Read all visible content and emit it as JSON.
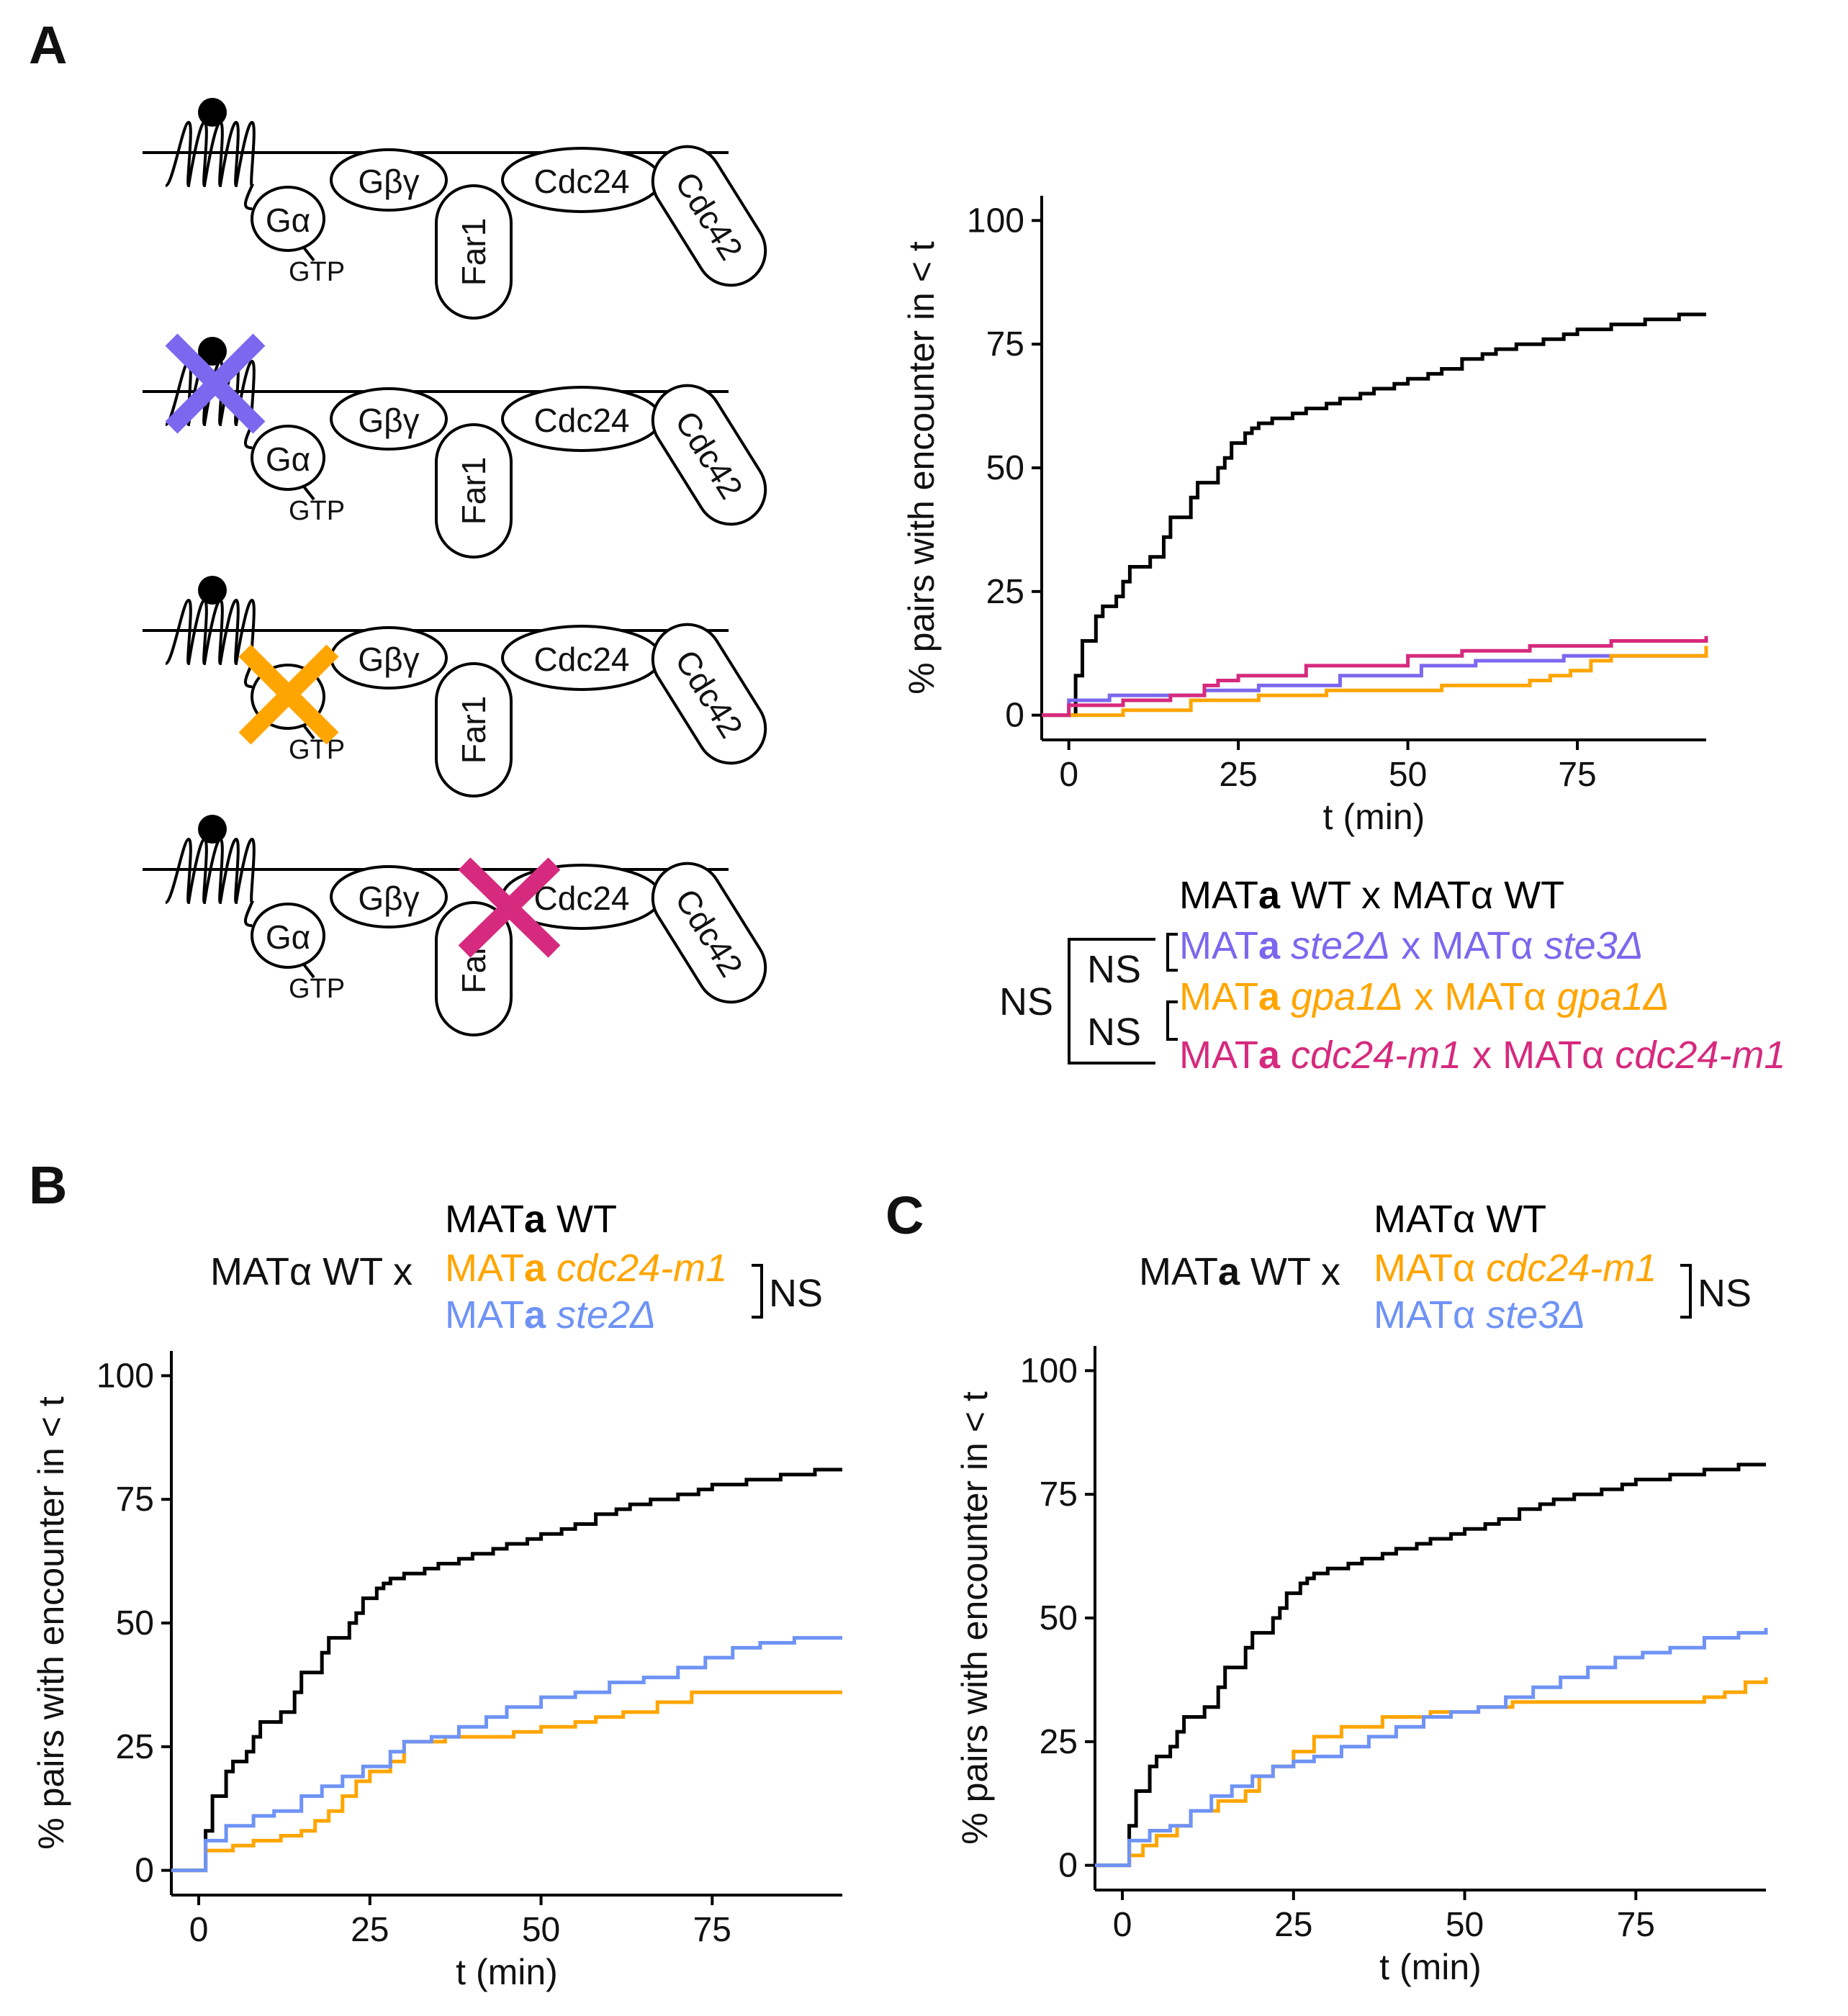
{
  "panels": {
    "A": "A",
    "B": "B",
    "C": "C"
  },
  "colors": {
    "wt": "#000000",
    "purple": "#7b68ee",
    "orange": "#ffa500",
    "magenta": "#d62a7e",
    "blue": "#6f93f5"
  },
  "diagram": {
    "g_alpha": "Gα",
    "gtp": "GTP",
    "g_beta_gamma": "Gβγ",
    "far1": "Far1",
    "cdc24": "Cdc24",
    "cdc42": "Cdc42",
    "far1_partial": "Far",
    "cdc24_partial": "Cdc24",
    "rows": [
      {
        "knockout": "none"
      },
      {
        "knockout": "receptor",
        "color": "purple"
      },
      {
        "knockout": "g_alpha",
        "color": "orange"
      },
      {
        "knockout": "cdc24_far1_interface",
        "color": "magenta"
      }
    ]
  },
  "legend_a": {
    "rows": [
      {
        "color": "wt",
        "parts": [
          {
            "t": "MAT",
            "s": ""
          },
          {
            "t": "a",
            "s": "bd"
          },
          {
            "t": " WT x MATα WT",
            "s": ""
          }
        ]
      },
      {
        "color": "purple",
        "parts": [
          {
            "t": "MAT",
            "s": ""
          },
          {
            "t": "a",
            "s": "bd"
          },
          {
            "t": " ",
            "s": ""
          },
          {
            "t": "ste2Δ",
            "s": "it"
          },
          {
            "t": " x MATα ",
            "s": ""
          },
          {
            "t": "ste3Δ",
            "s": "it"
          }
        ]
      },
      {
        "color": "orange",
        "parts": [
          {
            "t": "MAT",
            "s": ""
          },
          {
            "t": "a",
            "s": "bd"
          },
          {
            "t": " ",
            "s": ""
          },
          {
            "t": "gpa1Δ",
            "s": "it"
          },
          {
            "t": " x MATα ",
            "s": ""
          },
          {
            "t": "gpa1Δ",
            "s": "it"
          }
        ]
      },
      {
        "color": "magenta",
        "parts": [
          {
            "t": "MAT",
            "s": ""
          },
          {
            "t": "a",
            "s": "bd"
          },
          {
            "t": " ",
            "s": ""
          },
          {
            "t": "cdc24-m1",
            "s": "it"
          },
          {
            "t": " x MATα ",
            "s": ""
          },
          {
            "t": "cdc24-m1",
            "s": "it"
          }
        ]
      }
    ],
    "ns_outer": "NS",
    "ns_upper": "NS",
    "ns_lower": "NS"
  },
  "legend_b": {
    "prefix": "MATα WT x",
    "rows": [
      {
        "color": "wt",
        "parts": [
          {
            "t": "MAT",
            "s": ""
          },
          {
            "t": "a",
            "s": "bd"
          },
          {
            "t": " WT",
            "s": ""
          }
        ]
      },
      {
        "color": "orange",
        "parts": [
          {
            "t": "MAT",
            "s": ""
          },
          {
            "t": "a",
            "s": "bd"
          },
          {
            "t": " ",
            "s": ""
          },
          {
            "t": "cdc24-m1",
            "s": "it"
          }
        ]
      },
      {
        "color": "blue",
        "parts": [
          {
            "t": "MAT",
            "s": ""
          },
          {
            "t": "a",
            "s": "bd"
          },
          {
            "t": " ",
            "s": ""
          },
          {
            "t": "ste2Δ",
            "s": "it"
          }
        ]
      }
    ],
    "ns": "NS"
  },
  "legend_c": {
    "prefix_parts": [
      {
        "t": "MAT",
        "s": ""
      },
      {
        "t": "a",
        "s": "bd"
      },
      {
        "t": " WT x",
        "s": ""
      }
    ],
    "rows": [
      {
        "color": "wt",
        "parts": [
          {
            "t": "MATα WT",
            "s": ""
          }
        ]
      },
      {
        "color": "orange",
        "parts": [
          {
            "t": "MATα ",
            "s": ""
          },
          {
            "t": "cdc24-m1",
            "s": "it"
          }
        ]
      },
      {
        "color": "blue",
        "parts": [
          {
            "t": "MATα ",
            "s": ""
          },
          {
            "t": "ste3Δ",
            "s": "it"
          }
        ]
      }
    ],
    "ns": "NS"
  },
  "chart_data": [
    {
      "id": "A",
      "type": "line",
      "step": true,
      "title": "",
      "xlabel": "t (min)",
      "ylabel": "% pairs with encounter in < t",
      "xlim": [
        -4,
        94
      ],
      "ylim": [
        -5,
        105
      ],
      "xticks": [
        0,
        25,
        50,
        75
      ],
      "yticks": [
        0,
        25,
        50,
        75,
        100
      ],
      "series": [
        {
          "name": "MATa WT x MATα WT",
          "color": "wt",
          "x": [
            -4,
            0,
            1,
            2,
            4,
            5,
            7,
            8,
            9,
            11,
            12,
            14,
            15,
            16,
            18,
            19,
            20,
            22,
            23,
            24,
            26,
            27,
            28,
            30,
            33,
            35,
            38,
            40,
            43,
            45,
            48,
            50,
            53,
            55,
            58,
            61,
            63,
            66,
            70,
            73,
            75,
            80,
            85,
            90,
            94
          ],
          "y": [
            0,
            0,
            8,
            15,
            20,
            22,
            24,
            27,
            30,
            30,
            32,
            36,
            40,
            40,
            44,
            47,
            47,
            50,
            52,
            55,
            57,
            58,
            59,
            60,
            61,
            62,
            63,
            64,
            65,
            66,
            67,
            68,
            69,
            70,
            72,
            73,
            74,
            75,
            76,
            77,
            78,
            79,
            80,
            81,
            81
          ]
        },
        {
          "name": "MATa ste2Δ x MATα ste3Δ",
          "color": "purple",
          "x": [
            -4,
            0,
            6,
            20,
            28,
            40,
            52,
            60,
            73,
            94
          ],
          "y": [
            0,
            3,
            4,
            5,
            6,
            8,
            10,
            11,
            12,
            12
          ]
        },
        {
          "name": "MATa gpa1Δ x MATα gpa1Δ",
          "color": "orange",
          "x": [
            -4,
            0,
            8,
            18,
            28,
            38,
            55,
            68,
            71,
            74,
            77,
            80,
            94
          ],
          "y": [
            0,
            0,
            1,
            3,
            4,
            5,
            6,
            7,
            8,
            9,
            11,
            12,
            14
          ]
        },
        {
          "name": "MATa cdc24-m1 x MATα cdc24-m1",
          "color": "magenta",
          "x": [
            -4,
            0,
            8,
            15,
            20,
            22,
            25,
            35,
            50,
            58,
            68,
            80,
            94
          ],
          "y": [
            0,
            2,
            3,
            4,
            6,
            7,
            8,
            10,
            12,
            13,
            14,
            15,
            16
          ]
        }
      ]
    },
    {
      "id": "B",
      "type": "line",
      "step": true,
      "title": "",
      "xlabel": "t (min)",
      "ylabel": "% pairs with encounter in < t",
      "xlim": [
        -4,
        94
      ],
      "ylim": [
        -5,
        105
      ],
      "xticks": [
        0,
        25,
        50,
        75
      ],
      "yticks": [
        0,
        25,
        50,
        75,
        100
      ],
      "series": [
        {
          "name": "MATa WT",
          "color": "wt",
          "x": [
            -4,
            0,
            1,
            2,
            4,
            5,
            7,
            8,
            9,
            11,
            12,
            14,
            15,
            16,
            18,
            19,
            20,
            22,
            23,
            24,
            26,
            27,
            28,
            30,
            33,
            35,
            38,
            40,
            43,
            45,
            48,
            50,
            53,
            55,
            58,
            61,
            63,
            66,
            70,
            73,
            75,
            80,
            85,
            90,
            94
          ],
          "y": [
            0,
            0,
            8,
            15,
            20,
            22,
            24,
            27,
            30,
            30,
            32,
            36,
            40,
            40,
            44,
            47,
            47,
            50,
            52,
            55,
            57,
            58,
            59,
            60,
            61,
            62,
            63,
            64,
            65,
            66,
            67,
            68,
            69,
            70,
            72,
            73,
            74,
            75,
            76,
            77,
            78,
            79,
            80,
            81,
            81
          ]
        },
        {
          "name": "MATa cdc24-m1",
          "color": "orange",
          "x": [
            -4,
            0,
            1,
            5,
            8,
            12,
            15,
            17,
            19,
            21,
            23,
            25,
            28,
            30,
            36,
            42,
            46,
            50,
            55,
            58,
            62,
            67,
            72,
            94
          ],
          "y": [
            0,
            0,
            4,
            5,
            6,
            7,
            8,
            10,
            12,
            15,
            18,
            20,
            22,
            26,
            27,
            27,
            28,
            29,
            30,
            31,
            32,
            34,
            36,
            36
          ]
        },
        {
          "name": "MATa ste2Δ",
          "color": "blue",
          "x": [
            -4,
            0,
            1,
            4,
            8,
            11,
            15,
            18,
            21,
            24,
            28,
            30,
            34,
            38,
            42,
            45,
            50,
            55,
            60,
            65,
            70,
            74,
            78,
            82,
            87,
            94
          ],
          "y": [
            0,
            0,
            6,
            9,
            11,
            12,
            15,
            17,
            19,
            21,
            24,
            26,
            27,
            29,
            31,
            33,
            35,
            36,
            38,
            39,
            41,
            43,
            45,
            46,
            47,
            47
          ]
        }
      ]
    },
    {
      "id": "C",
      "type": "line",
      "step": true,
      "title": "",
      "xlabel": "t (min)",
      "ylabel": "% pairs with encounter in < t",
      "xlim": [
        -4,
        94
      ],
      "ylim": [
        -5,
        105
      ],
      "xticks": [
        0,
        25,
        50,
        75
      ],
      "yticks": [
        0,
        25,
        50,
        75,
        100
      ],
      "series": [
        {
          "name": "MATα WT",
          "color": "wt",
          "x": [
            -4,
            0,
            1,
            2,
            4,
            5,
            7,
            8,
            9,
            11,
            12,
            14,
            15,
            16,
            18,
            19,
            20,
            22,
            23,
            24,
            26,
            27,
            28,
            30,
            33,
            35,
            38,
            40,
            43,
            45,
            48,
            50,
            53,
            55,
            58,
            61,
            63,
            66,
            70,
            73,
            75,
            80,
            85,
            90,
            94
          ],
          "y": [
            0,
            0,
            8,
            15,
            20,
            22,
            24,
            27,
            30,
            30,
            32,
            36,
            40,
            40,
            44,
            47,
            47,
            50,
            52,
            55,
            57,
            58,
            59,
            60,
            61,
            62,
            63,
            64,
            65,
            66,
            67,
            68,
            69,
            70,
            72,
            73,
            74,
            75,
            76,
            77,
            78,
            79,
            80,
            81,
            81
          ]
        },
        {
          "name": "MATα cdc24-m1",
          "color": "orange",
          "x": [
            -4,
            0,
            1,
            3,
            5,
            8,
            10,
            14,
            18,
            20,
            22,
            25,
            28,
            32,
            38,
            45,
            52,
            57,
            62,
            66,
            72,
            78,
            85,
            88,
            91,
            94
          ],
          "y": [
            0,
            0,
            2,
            4,
            6,
            8,
            11,
            13,
            15,
            18,
            20,
            23,
            26,
            28,
            30,
            31,
            32,
            33,
            33,
            33,
            33,
            33,
            34,
            35,
            37,
            38
          ]
        },
        {
          "name": "MATα ste3Δ",
          "color": "blue",
          "x": [
            -4,
            0,
            1,
            4,
            7,
            10,
            13,
            16,
            19,
            22,
            25,
            28,
            32,
            36,
            40,
            44,
            48,
            52,
            56,
            60,
            64,
            68,
            72,
            76,
            80,
            85,
            90,
            94
          ],
          "y": [
            0,
            0,
            5,
            7,
            8,
            11,
            14,
            16,
            18,
            20,
            21,
            22,
            24,
            26,
            28,
            30,
            31,
            32,
            34,
            36,
            38,
            40,
            42,
            43,
            44,
            46,
            47,
            48
          ]
        }
      ]
    }
  ]
}
